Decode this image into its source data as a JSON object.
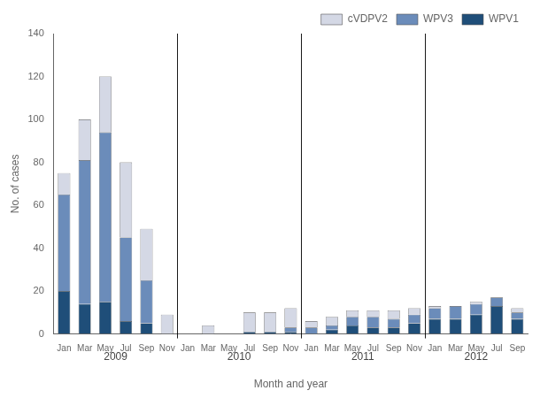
{
  "chart_data": {
    "type": "bar",
    "stacked": true,
    "categories": [
      "Jan",
      "Mar",
      "May",
      "Jul",
      "Sep",
      "Nov",
      "Jan",
      "Mar",
      "May",
      "Jul",
      "Sep",
      "Nov",
      "Jan",
      "Mar",
      "May",
      "Jul",
      "Sep",
      "Nov",
      "Jan",
      "Mar",
      "May",
      "Jul",
      "Sep"
    ],
    "series": [
      {
        "name": "WPV1",
        "color": "#1f4e79",
        "values": [
          20,
          14,
          15,
          6,
          5,
          0,
          0,
          0,
          0,
          1,
          1,
          1,
          0,
          2,
          4,
          3,
          3,
          5,
          7,
          7,
          9,
          13,
          7
        ]
      },
      {
        "name": "WPV3",
        "color": "#6b8cba",
        "values": [
          45,
          67,
          79,
          39,
          20,
          0,
          0,
          0,
          0,
          0,
          0,
          2,
          3,
          2,
          4,
          5,
          4,
          4,
          5,
          6,
          5,
          4,
          3
        ]
      },
      {
        "name": "cVDPV2",
        "color": "#d4d8e5",
        "values": [
          10,
          19,
          26,
          35,
          24,
          9,
          0,
          4,
          0,
          9,
          9,
          9,
          3,
          4,
          3,
          3,
          4,
          3,
          1,
          0,
          1,
          0,
          2
        ]
      }
    ],
    "annotations": [
      "2009",
      "2010",
      "2011",
      "2012"
    ],
    "xlabel": "Month and year",
    "ylabel": "No. of cases",
    "ylim": [
      0,
      140
    ],
    "yticks": [
      0,
      20,
      40,
      60,
      80,
      100,
      120,
      140
    ],
    "grid": false,
    "legend": "upper right"
  }
}
